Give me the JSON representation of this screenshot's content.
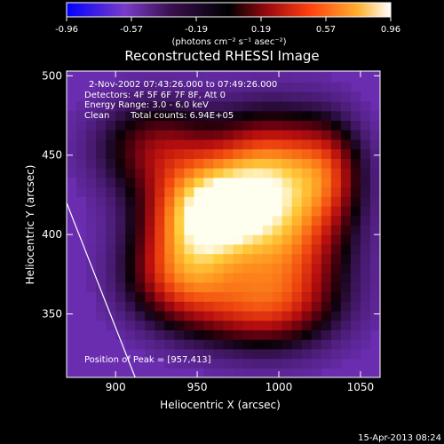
{
  "chart_data": {
    "type": "heatmap",
    "title": "Reconstructed RHESSI Image",
    "xlabel": "Heliocentric X (arcsec)",
    "ylabel": "Heliocentric Y (arcsec)",
    "xlim": [
      870,
      1062
    ],
    "ylim": [
      310,
      503
    ],
    "x_ticks": [
      900,
      950,
      1000,
      1050
    ],
    "y_ticks": [
      350,
      400,
      450,
      500
    ],
    "colorbar": {
      "range": [
        -0.96,
        0.96
      ],
      "ticks": [
        "-0.96",
        "-0.57",
        "-0.19",
        "0.19",
        "0.57",
        "0.96"
      ],
      "unit_label": "(photons cm⁻² s⁻¹ asec⁻²)"
    },
    "annotations": [
      "2-Nov-2002 07:43:26.000 to 07:49:26.000",
      "Detectors: 4F 5F 6F 7F 8F, Att 0",
      "Energy Range: 3.0 - 6.0 keV",
      "Clean",
      "Total counts: 6.94E+05",
      "Position of Peak = [957,413]"
    ],
    "peak": {
      "x": 957,
      "y": 413,
      "value": 0.96
    },
    "sources": [
      {
        "x": 957,
        "y": 413,
        "sx": 24,
        "sy": 22,
        "amp": 0.95
      },
      {
        "x": 995,
        "y": 440,
        "sx": 26,
        "sy": 24,
        "amp": 0.62
      },
      {
        "x": 1005,
        "y": 395,
        "sx": 24,
        "sy": 30,
        "amp": 0.55
      },
      {
        "x": 940,
        "y": 375,
        "sx": 22,
        "sy": 20,
        "amp": 0.5
      },
      {
        "x": 985,
        "y": 355,
        "sx": 30,
        "sy": 18,
        "amp": 0.42
      },
      {
        "x": 925,
        "y": 455,
        "sx": 24,
        "sy": 20,
        "amp": 0.35
      },
      {
        "x": 1030,
        "y": 440,
        "sx": 14,
        "sy": 22,
        "amp": 0.3
      }
    ],
    "limb_line": {
      "x": [
        870,
        912
      ],
      "y": [
        420,
        310
      ]
    },
    "colors": {
      "background": "#000000",
      "text": "#ffffff",
      "low": "#6a2db0",
      "mid_dark": "#1a0010",
      "mid": "#c01010",
      "high": "#ffa020",
      "top": "#ffffff"
    }
  },
  "footer": {
    "timestamp": "15-Apr-2013 08:24"
  }
}
